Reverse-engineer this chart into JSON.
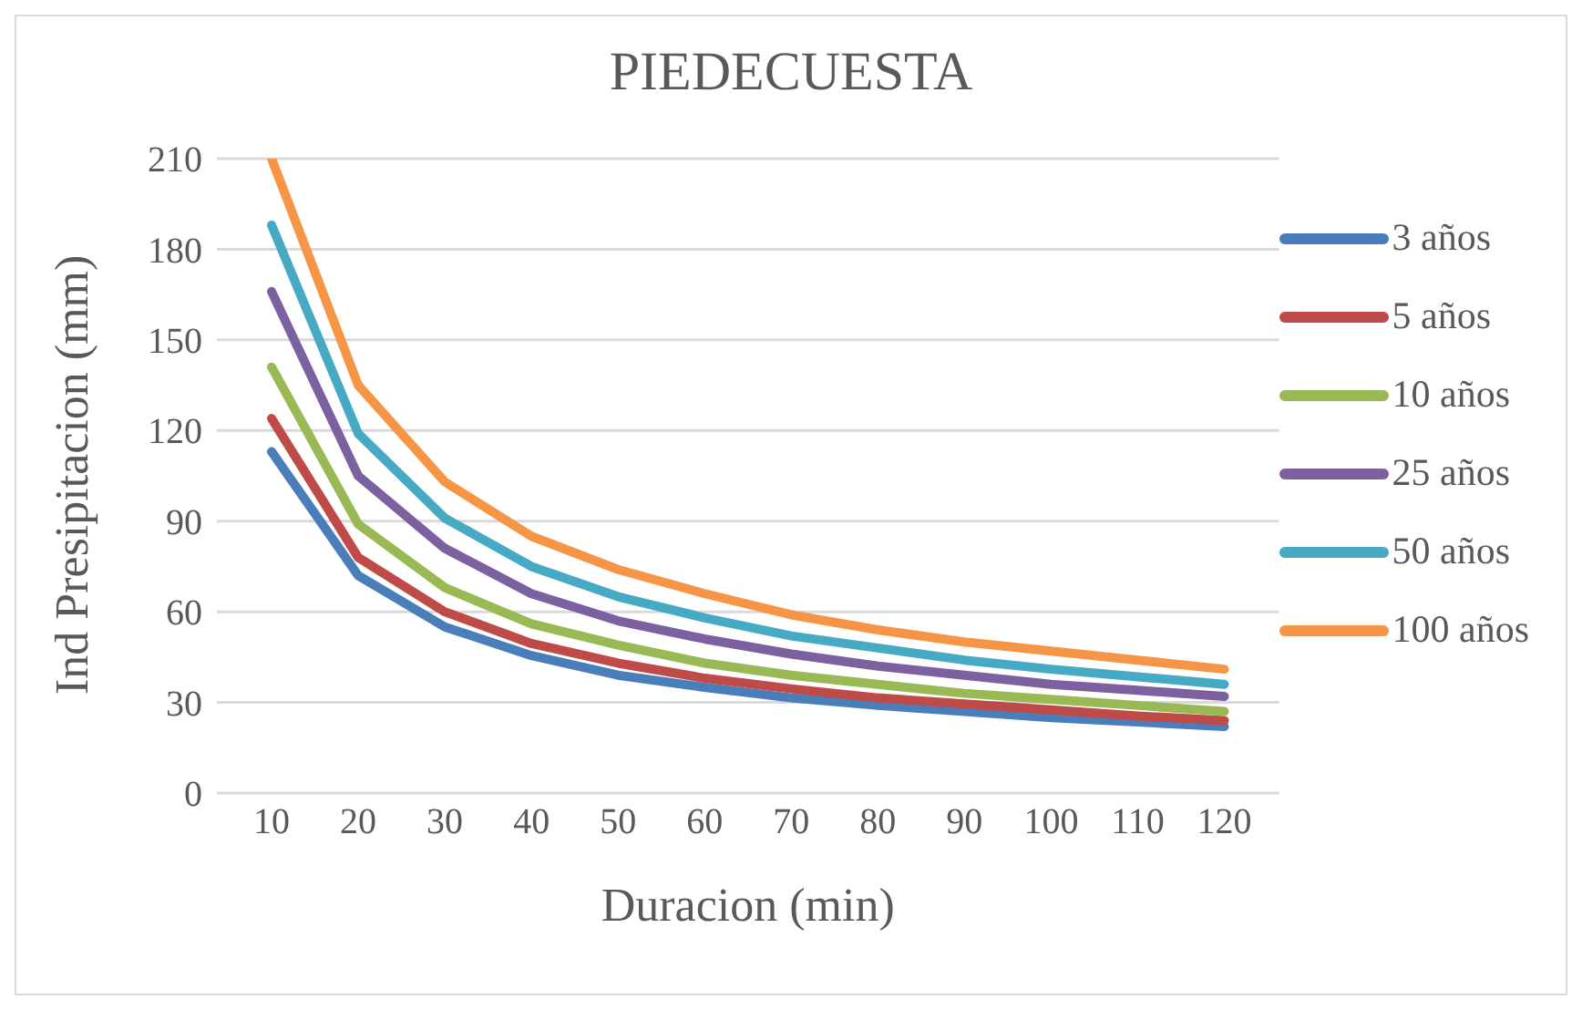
{
  "chart_data": {
    "type": "line",
    "title": "PIEDECUESTA",
    "xlabel": "Duracion (min)",
    "ylabel": "Ind Presipitacion (mm)",
    "categories": [
      "10",
      "20",
      "30",
      "40",
      "50",
      "60",
      "70",
      "80",
      "90",
      "100",
      "110",
      "120"
    ],
    "series": [
      {
        "name": "3 años",
        "color": "#4a7ebb",
        "values": [
          113,
          72,
          55,
          45.5,
          39,
          35,
          31.5,
          29,
          27,
          25,
          23.5,
          22
        ]
      },
      {
        "name": "5 años",
        "color": "#be4b48",
        "values": [
          124,
          78,
          60,
          49.5,
          43,
          38,
          34.5,
          31.5,
          29.5,
          27.5,
          25.5,
          24
        ]
      },
      {
        "name": "10 años",
        "color": "#98b954",
        "values": [
          141,
          89,
          68,
          56,
          49,
          43,
          39,
          36,
          33,
          31,
          29,
          27
        ]
      },
      {
        "name": "25 años",
        "color": "#7d60a0",
        "values": [
          166,
          105,
          81,
          66,
          57,
          51,
          46,
          42,
          39,
          36,
          34,
          32
        ]
      },
      {
        "name": "50 años",
        "color": "#46aac5",
        "values": [
          188,
          119,
          91,
          75,
          65,
          58,
          52,
          48,
          44,
          41,
          38.5,
          36
        ]
      },
      {
        "name": "100 años",
        "color": "#f69546",
        "values": [
          210,
          135,
          103,
          85,
          74,
          66,
          59,
          54,
          50,
          47,
          44,
          41
        ]
      }
    ],
    "ylim": [
      0,
      210
    ],
    "yticks": [
      0,
      30,
      60,
      90,
      120,
      150,
      180,
      210
    ],
    "grid": "y",
    "legend": "right",
    "marker": "none",
    "line_style": "solid"
  }
}
